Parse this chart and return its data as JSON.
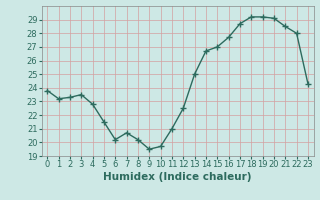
{
  "x": [
    0,
    1,
    2,
    3,
    4,
    5,
    6,
    7,
    8,
    9,
    10,
    11,
    12,
    13,
    14,
    15,
    16,
    17,
    18,
    19,
    20,
    21,
    22,
    23
  ],
  "y": [
    23.8,
    23.2,
    23.3,
    23.5,
    22.8,
    21.5,
    20.2,
    20.7,
    20.2,
    19.5,
    19.7,
    21.0,
    22.5,
    25.0,
    26.7,
    27.0,
    27.7,
    28.7,
    29.2,
    29.2,
    29.1,
    28.5,
    28.0,
    24.3
  ],
  "xlabel": "Humidex (Indice chaleur)",
  "ylim": [
    19,
    30
  ],
  "xlim": [
    -0.5,
    23.5
  ],
  "yticks": [
    19,
    20,
    21,
    22,
    23,
    24,
    25,
    26,
    27,
    28,
    29
  ],
  "xticks": [
    0,
    1,
    2,
    3,
    4,
    5,
    6,
    7,
    8,
    9,
    10,
    11,
    12,
    13,
    14,
    15,
    16,
    17,
    18,
    19,
    20,
    21,
    22,
    23
  ],
  "line_color": "#2d6b5e",
  "marker": "+",
  "marker_size": 4.0,
  "bg_color": "#cde8e5",
  "grid_color": "#d4a0a0",
  "tick_label_fontsize": 6,
  "xlabel_fontsize": 7.5,
  "line_width": 1.0
}
